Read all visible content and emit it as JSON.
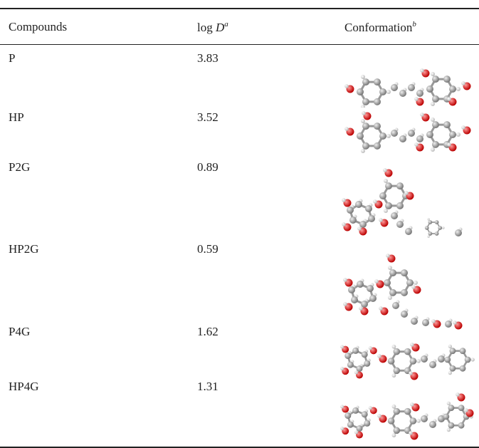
{
  "header": [
    {
      "text": "Compounds"
    },
    {
      "text": "log ",
      "italic": "D",
      "sup": "a"
    },
    {
      "text": "Conformation",
      "sup": "b"
    }
  ],
  "rows": [
    {
      "compound": "P",
      "log_d": "3.83"
    },
    {
      "compound": "HP",
      "log_d": "3.52"
    },
    {
      "compound": "P2G",
      "log_d": "0.89"
    },
    {
      "compound": "HP2G",
      "log_d": "0.59"
    },
    {
      "compound": "P4G",
      "log_d": "1.62"
    },
    {
      "compound": "HP4G",
      "log_d": "1.31"
    }
  ]
}
